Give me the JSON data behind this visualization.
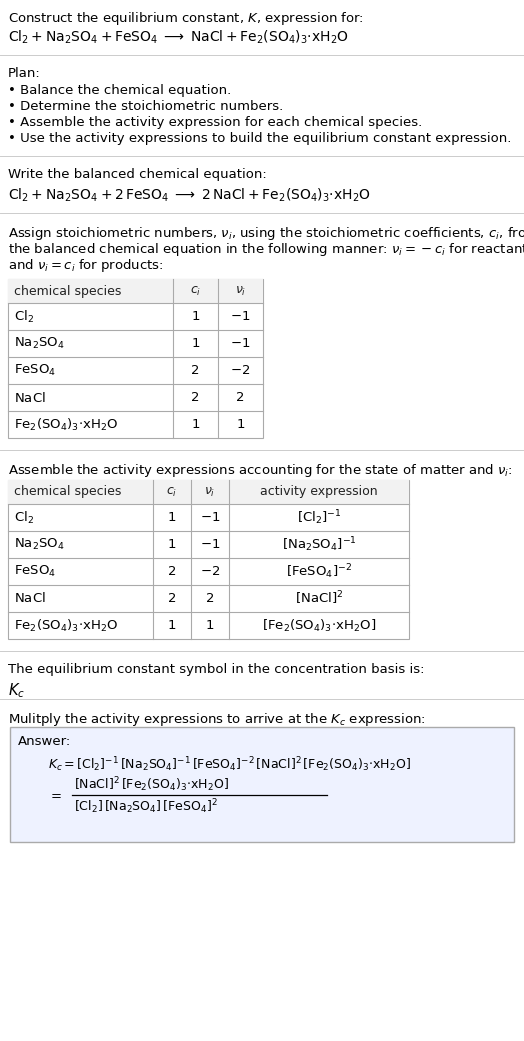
{
  "bg_color": "#ffffff",
  "text_color": "#000000",
  "title_line1": "Construct the equilibrium constant, $K$, expression for:",
  "title_line2": "$\\mathrm{Cl_2 + Na_2SO_4 + FeSO_4 \\;\\longrightarrow\\; NaCl + Fe_2(SO_4)_3{\\cdot}xH_2O}$",
  "plan_header": "Plan:",
  "plan_items": [
    "\\u2022 Balance the chemical equation.",
    "\\u2022 Determine the stoichiometric numbers.",
    "\\u2022 Assemble the activity expression for each chemical species.",
    "\\u2022 Use the activity expressions to build the equilibrium constant expression."
  ],
  "balanced_header": "Write the balanced chemical equation:",
  "balanced_eq": "$\\mathrm{Cl_2 + Na_2SO_4 + 2\\,FeSO_4 \\;\\longrightarrow\\; 2\\,NaCl + Fe_2(SO_4)_3{\\cdot}xH_2O}$",
  "table1_headers": [
    "chemical species",
    "$c_i$",
    "$\\nu_i$"
  ],
  "table1_rows": [
    [
      "$\\mathrm{Cl_2}$",
      "1",
      "$-1$"
    ],
    [
      "$\\mathrm{Na_2SO_4}$",
      "1",
      "$-1$"
    ],
    [
      "$\\mathrm{FeSO_4}$",
      "2",
      "$-2$"
    ],
    [
      "$\\mathrm{NaCl}$",
      "2",
      "2"
    ],
    [
      "$\\mathrm{Fe_2(SO_4)_3{\\cdot}xH_2O}$",
      "1",
      "1"
    ]
  ],
  "table2_headers": [
    "chemical species",
    "$c_i$",
    "$\\nu_i$",
    "activity expression"
  ],
  "table2_rows": [
    [
      "$\\mathrm{Cl_2}$",
      "1",
      "$-1$",
      "$[\\mathrm{Cl_2}]^{-1}$"
    ],
    [
      "$\\mathrm{Na_2SO_4}$",
      "1",
      "$-1$",
      "$[\\mathrm{Na_2SO_4}]^{-1}$"
    ],
    [
      "$\\mathrm{FeSO_4}$",
      "2",
      "$-2$",
      "$[\\mathrm{FeSO_4}]^{-2}$"
    ],
    [
      "$\\mathrm{NaCl}$",
      "2",
      "2",
      "$[\\mathrm{NaCl}]^2$"
    ],
    [
      "$\\mathrm{Fe_2(SO_4)_3{\\cdot}xH_2O}$",
      "1",
      "1",
      "$[\\mathrm{Fe_2(SO_4)_3{\\cdot}xH_2O}]$"
    ]
  ],
  "kc_header": "The equilibrium constant symbol in the concentration basis is:",
  "kc_symbol": "$K_c$",
  "multiply_header": "Mulitply the activity expressions to arrive at the $K_c$ expression:",
  "answer_label": "Answer:",
  "answer_eq": "$K_c = [\\mathrm{Cl_2}]^{-1}\\,[\\mathrm{Na_2SO_4}]^{-1}\\,[\\mathrm{FeSO_4}]^{-2}\\,[\\mathrm{NaCl}]^2\\,[\\mathrm{Fe_2(SO_4)_3{\\cdot}xH_2O}]$",
  "answer_num": "$[\\mathrm{NaCl}]^2\\,[\\mathrm{Fe_2(SO_4)_3{\\cdot}xH_2O}]$",
  "answer_den": "$[\\mathrm{Cl_2}]\\,[\\mathrm{Na_2SO_4}]\\,[\\mathrm{FeSO_4}]^2$",
  "line_color": "#cccccc",
  "table_border_color": "#aaaaaa",
  "table_header_bg": "#f2f2f2",
  "answer_box_bg": "#eef2ff",
  "answer_box_border": "#aaaaaa",
  "fs": 9.5
}
